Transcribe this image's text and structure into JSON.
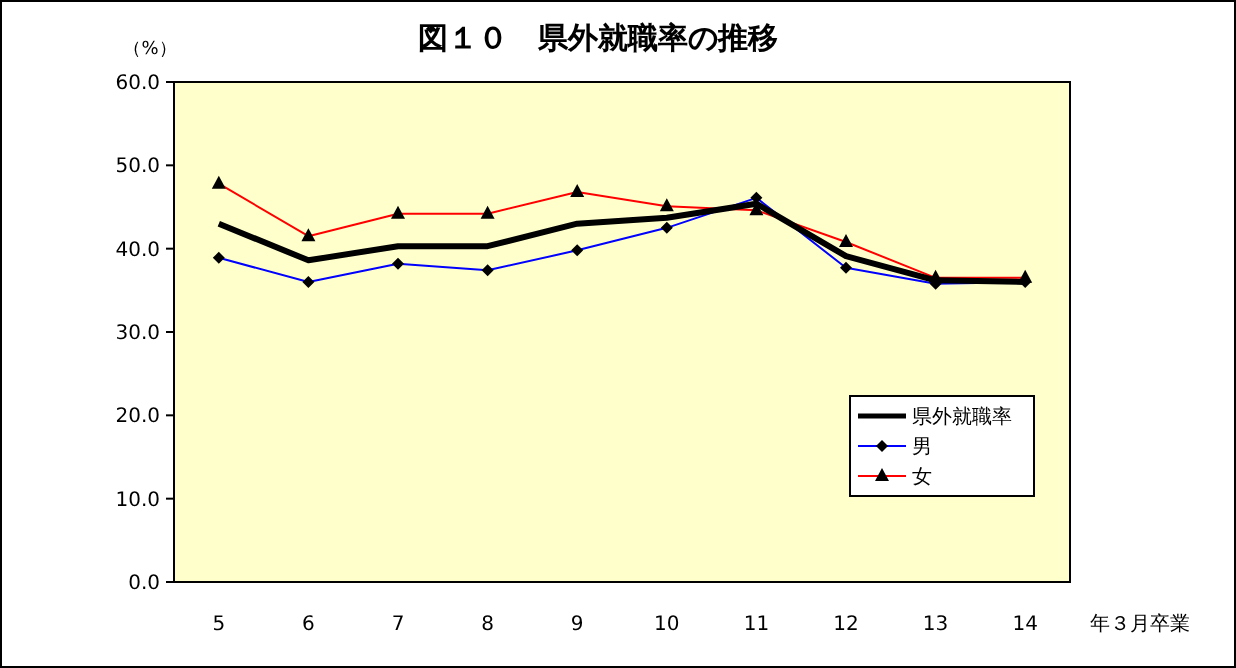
{
  "chart_data": {
    "type": "line",
    "title": "図１０　県外就職率の推移",
    "ylabel": "（%）",
    "xlabel": "年３月卒業",
    "categories": [
      "5",
      "6",
      "7",
      "8",
      "9",
      "10",
      "11",
      "12",
      "13",
      "14"
    ],
    "series": [
      {
        "name": "県外就職率",
        "color": "#000000",
        "marker": "none",
        "values": [
          43.0,
          38.6,
          40.3,
          40.3,
          43.0,
          43.7,
          45.4,
          39.1,
          36.2,
          36.0
        ]
      },
      {
        "name": "男",
        "color": "#0000ff",
        "marker": "diamond",
        "values": [
          38.9,
          36.0,
          38.2,
          37.4,
          39.8,
          42.5,
          46.1,
          37.7,
          35.8,
          36.0
        ]
      },
      {
        "name": "女",
        "color": "#ff0000",
        "marker": "triangle",
        "values": [
          47.8,
          41.5,
          44.2,
          44.2,
          46.8,
          45.1,
          44.6,
          40.8,
          36.5,
          36.5
        ]
      }
    ],
    "ylim": [
      0,
      60
    ],
    "yticks": [
      {
        "value": 0,
        "label": "0.0"
      },
      {
        "value": 10,
        "label": "10.0"
      },
      {
        "value": 20,
        "label": "20.0"
      },
      {
        "value": 30,
        "label": "30.0"
      },
      {
        "value": 40,
        "label": "40.0"
      },
      {
        "value": 50,
        "label": "50.0"
      },
      {
        "value": 60,
        "label": "60.0"
      }
    ],
    "grid": false,
    "legend": "bottom right"
  }
}
